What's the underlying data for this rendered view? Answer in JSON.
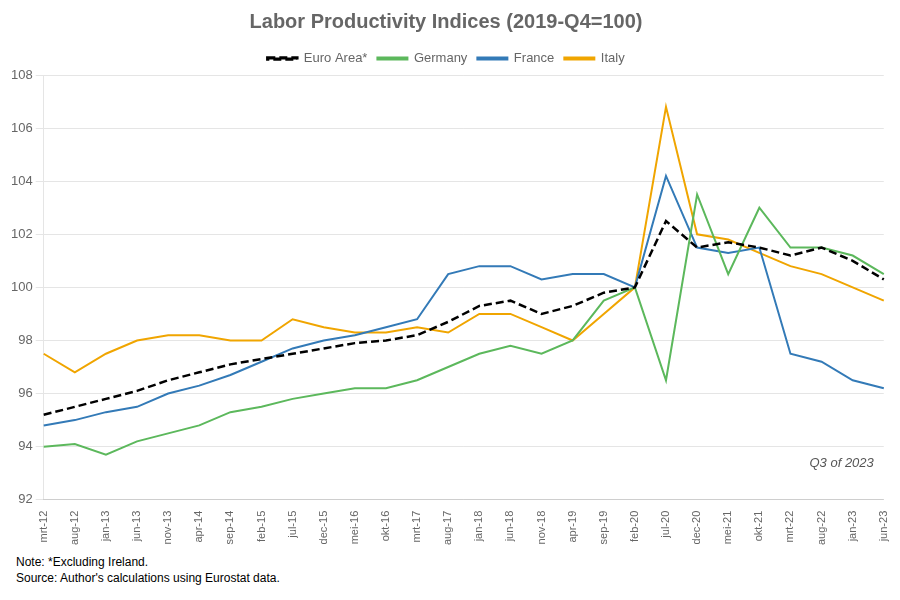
{
  "chart_data": {
    "type": "line",
    "title": "Labor Productivity Indices (2019-Q4=100)",
    "categories": [
      "mrt-12",
      "aug-12",
      "jan-13",
      "jun-13",
      "nov-13",
      "apr-14",
      "sep-14",
      "feb-15",
      "jul-15",
      "dec-15",
      "mei-16",
      "okt-16",
      "mrt-17",
      "aug-17",
      "jan-18",
      "jun-18",
      "nov-18",
      "apr-19",
      "sep-19",
      "feb-20",
      "jul-20",
      "dec-20",
      "mei-21",
      "okt-21",
      "mrt-22",
      "aug-22",
      "jan-23",
      "jun-23"
    ],
    "series": [
      {
        "name": "Euro Area*",
        "color": "#000000",
        "line_style": "dashed",
        "values": [
          95.2,
          95.5,
          95.8,
          96.1,
          96.5,
          96.8,
          97.1,
          97.3,
          97.5,
          97.7,
          97.9,
          98.0,
          98.2,
          98.7,
          99.3,
          99.5,
          99.0,
          99.3,
          99.8,
          100.0,
          102.5,
          101.5,
          101.7,
          101.5,
          101.2,
          101.5,
          101.0,
          100.3
        ]
      },
      {
        "name": "Germany",
        "color": "#5cb85c",
        "line_style": "solid",
        "values": [
          94.0,
          94.1,
          93.7,
          94.2,
          94.5,
          94.8,
          95.3,
          95.5,
          95.8,
          96.0,
          96.2,
          96.2,
          96.5,
          97.0,
          97.5,
          97.8,
          97.5,
          98.0,
          99.5,
          100.0,
          96.5,
          103.5,
          100.5,
          103.0,
          101.5,
          101.5,
          101.2,
          100.5
        ]
      },
      {
        "name": "France",
        "color": "#337ab7",
        "line_style": "solid",
        "values": [
          94.8,
          95.0,
          95.3,
          95.5,
          96.0,
          96.3,
          96.7,
          97.2,
          97.7,
          98.0,
          98.2,
          98.5,
          98.8,
          100.5,
          100.8,
          100.8,
          100.3,
          100.5,
          100.5,
          100.0,
          104.2,
          101.5,
          101.3,
          101.5,
          97.5,
          97.2,
          96.5,
          96.2
        ]
      },
      {
        "name": "Italy",
        "color": "#f0a500",
        "line_style": "solid",
        "values": [
          97.5,
          96.8,
          97.5,
          98.0,
          98.2,
          98.2,
          98.0,
          98.0,
          98.8,
          98.5,
          98.3,
          98.3,
          98.5,
          98.3,
          99.0,
          99.0,
          98.5,
          98.0,
          99.0,
          100.0,
          106.8,
          102.0,
          101.8,
          101.3,
          100.8,
          100.5,
          100.0,
          99.5
        ]
      }
    ],
    "ylim": [
      92,
      108
    ],
    "yticks": [
      92,
      94,
      96,
      98,
      100,
      102,
      104,
      106,
      108
    ],
    "grid": true,
    "legend": "top",
    "annotation": "Q3 of 2023",
    "note": "Note: *Excluding Ireland.\nSource: Author's calculations using Eurostat data."
  }
}
